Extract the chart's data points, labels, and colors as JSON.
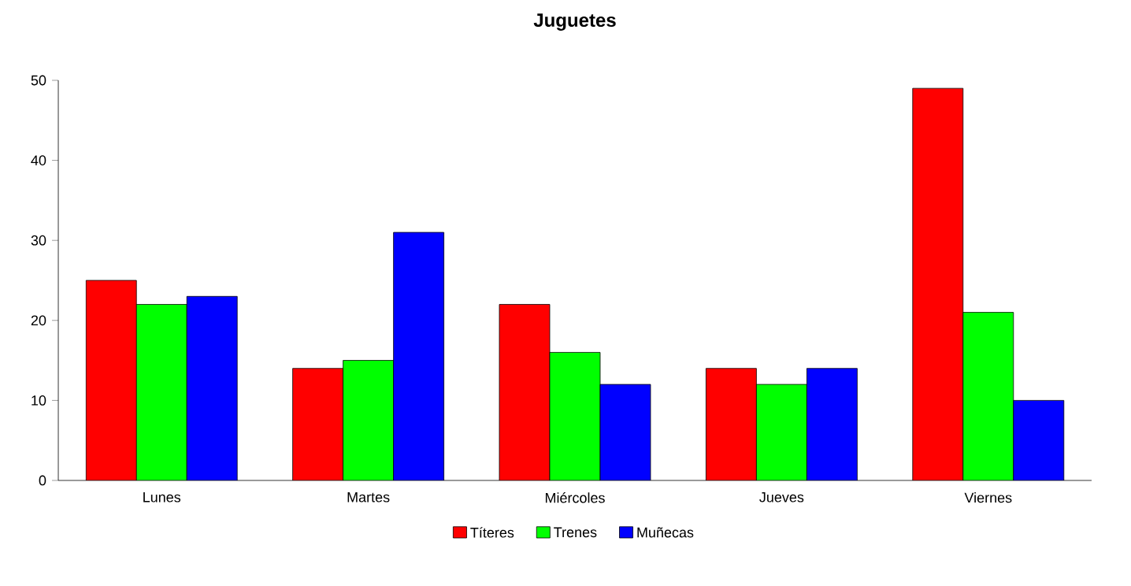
{
  "chart_data": {
    "type": "bar",
    "title": "Juguetes",
    "categories": [
      "Lunes",
      "Martes",
      "Miércoles",
      "Jueves",
      "Viernes"
    ],
    "series": [
      {
        "name": "Títeres",
        "color": "#ff0000",
        "values": [
          25,
          14,
          22,
          14,
          49
        ]
      },
      {
        "name": "Trenes",
        "color": "#00ff00",
        "values": [
          22,
          15,
          16,
          12,
          21
        ]
      },
      {
        "name": "Muñecas",
        "color": "#0000ff",
        "values": [
          23,
          31,
          12,
          14,
          10
        ]
      }
    ],
    "ylim": [
      0,
      50
    ],
    "yticks": [
      0,
      10,
      20,
      30,
      40,
      50
    ],
    "legend": "bottom"
  }
}
